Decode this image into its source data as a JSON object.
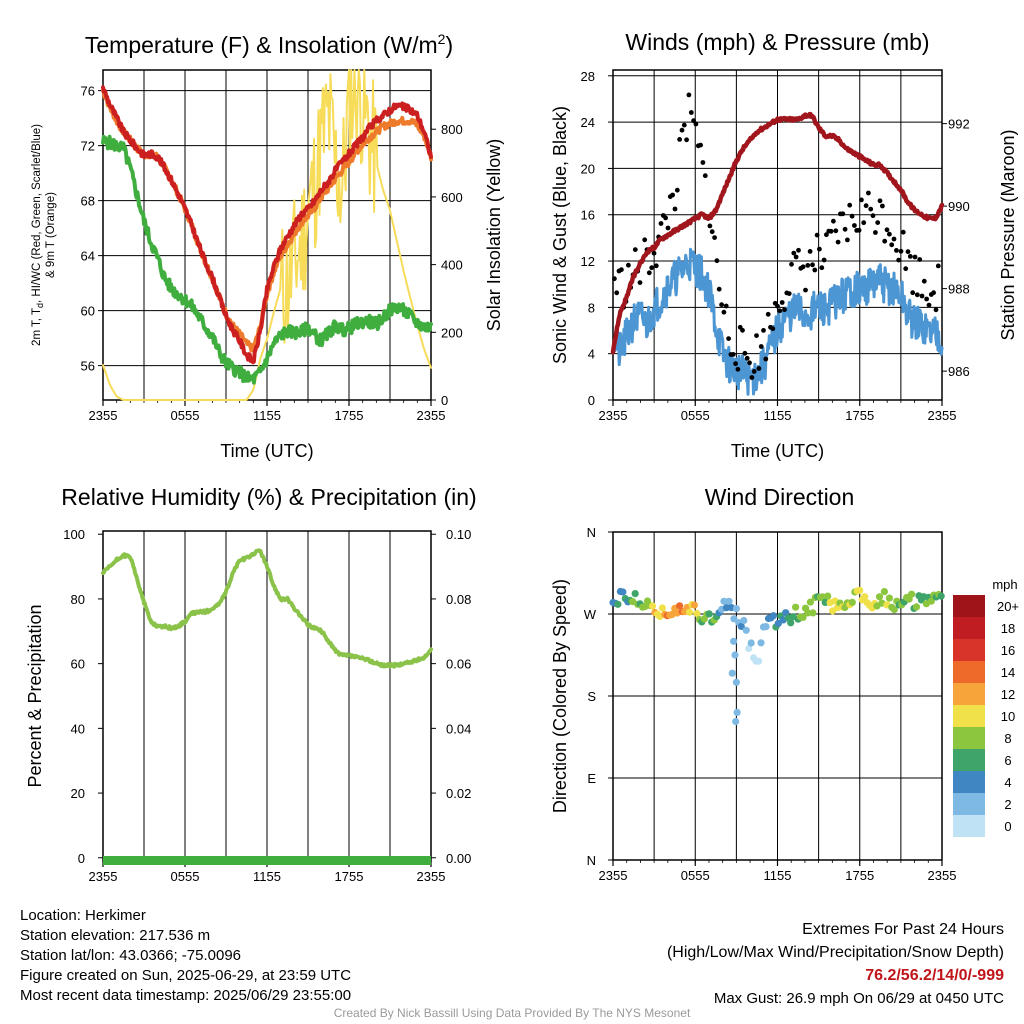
{
  "panels": {
    "temp": {
      "title": "Temperature (F) & Insolation (W/m",
      "title_sup": "2",
      "title_end": ")",
      "xlabel": "Time (UTC)",
      "ylabel_line1": "2m T, T",
      "ylabel_sub": "d",
      "ylabel_line1_end": ", HI/WC (Red, Green, Scarlet/Blue)",
      "ylabel_line2": "& 9m T (Orange)",
      "ylabel_right": "Solar Insolation (Yellow)"
    },
    "wind": {
      "title": "Winds (mph) & Pressure (mb)",
      "xlabel": "Time (UTC)",
      "ylabel": "Sonic Wind & Gust (Blue, Black)",
      "ylabel_right": "Station Pressure (Maroon)"
    },
    "rh": {
      "title": "Relative Humidity (%) & Precipitation (in)",
      "ylabel": "Percent & Precipitation"
    },
    "dir": {
      "title": "Wind Direction",
      "ylabel": "Direction (Colored By Speed)",
      "legend_title": "mph"
    }
  },
  "info": {
    "location": "Location: Herkimer",
    "elevation": "Station elevation: 217.536 m",
    "latlon": "Station lat/lon: 43.0366; -75.0096",
    "created": "Figure created on Sun, 2025-06-29, at 23:59 UTC",
    "recent": "Most recent data timestamp: 2025/06/29 23:55:00"
  },
  "extremes": {
    "line1": "Extremes For Past 24 Hours",
    "line2": "(High/Low/Max Wind/Precipitation/Snow Depth)",
    "values": "76.2/56.2/14/0/-999",
    "gust": "Max Gust: 26.9 mph On 06/29 at 0450 UTC"
  },
  "credit": "Created By Nick Bassill Using Data Provided By The NYS Mesonet",
  "colors": {
    "temp": "#cc1f1f",
    "temp9m": "#ee7b2c",
    "dewpoint": "#3fae3f",
    "solar": "#f7dc5a",
    "wind": "#4d96d4",
    "gust": "#000000",
    "pressure": "#a1161c",
    "rh": "#8bc34a",
    "precip": "#3fae3f"
  },
  "chart_data": [
    {
      "type": "line",
      "title": "Temperature (F) & Insolation (W/m2)",
      "xlabel": "Time (UTC)",
      "x_ticks": [
        "2355",
        "0555",
        "1155",
        "1755",
        "2355"
      ],
      "ylim": [
        53.5,
        77.5
      ],
      "y_ticks": [
        56,
        60,
        64,
        68,
        72,
        76
      ],
      "y2lim": [
        0,
        975
      ],
      "y2_ticks": [
        0,
        200,
        400,
        600,
        800
      ],
      "x_hours": [
        0,
        0.5,
        1,
        1.5,
        2,
        2.5,
        3,
        3.5,
        4,
        4.5,
        5,
        5.5,
        6,
        6.5,
        7,
        7.5,
        8,
        8.5,
        9,
        9.5,
        10,
        10.5,
        11,
        11.5,
        12,
        12.5,
        13,
        13.5,
        14,
        14.5,
        15,
        15.5,
        16,
        16.5,
        17,
        17.5,
        18,
        18.5,
        19,
        19.5,
        20,
        20.5,
        21,
        21.5,
        22,
        22.5,
        23,
        23.5,
        24
      ],
      "series": [
        {
          "values": [
            76.2,
            75.0,
            74.0,
            73.0,
            72.4,
            71.8,
            71.3,
            71.4,
            71.2,
            70.4,
            69.5,
            68.5,
            67.4,
            66.2,
            64.8,
            63.5,
            62.4,
            61.0,
            59.6,
            58.6,
            57.8,
            56.8,
            56.3,
            58.5,
            61.5,
            63.2,
            64.5,
            65.4,
            66.2,
            67.0,
            67.4,
            68.0,
            68.8,
            69.4,
            70.2,
            70.8,
            71.4,
            72.0,
            72.6,
            73.3,
            73.8,
            74.2,
            74.6,
            74.9,
            74.8,
            74.6,
            74.2,
            73.0,
            71.2
          ]
        },
        {
          "values": [
            76.0,
            74.8,
            73.8,
            73.0,
            72.4,
            71.8,
            71.3,
            71.4,
            71.2,
            70.4,
            69.5,
            68.5,
            67.4,
            66.2,
            64.8,
            63.5,
            62.4,
            61.0,
            59.8,
            58.9,
            58.3,
            57.6,
            57.2,
            58.8,
            61.2,
            62.8,
            64.0,
            64.8,
            65.6,
            66.4,
            66.9,
            67.5,
            68.3,
            68.9,
            69.6,
            70.2,
            70.8,
            71.5,
            72.1,
            72.6,
            73.0,
            73.4,
            73.6,
            73.8,
            73.8,
            73.8,
            73.5,
            72.7,
            71.2
          ]
        },
        {
          "values": [
            72.3,
            72.2,
            72.0,
            71.8,
            70.3,
            68.4,
            66.5,
            65.0,
            63.8,
            62.4,
            61.6,
            61.2,
            60.8,
            60.3,
            59.6,
            58.8,
            58.1,
            57.0,
            56.2,
            55.8,
            55.5,
            55.1,
            55.0,
            55.5,
            56.5,
            57.6,
            58.2,
            58.5,
            58.4,
            58.4,
            58.8,
            58.2,
            57.8,
            58.4,
            58.9,
            58.6,
            58.7,
            59.0,
            59.2,
            59.2,
            59.0,
            59.5,
            60.0,
            60.3,
            60.0,
            59.6,
            59.1,
            58.8,
            58.8
          ]
        },
        {
          "values": [
            103,
            45,
            10,
            0,
            0,
            0,
            0,
            0,
            0,
            0,
            0,
            0,
            0,
            0,
            0,
            0,
            0,
            0,
            0,
            0,
            0,
            0,
            30,
            120,
            180,
            260,
            330,
            340,
            400,
            460,
            560,
            640,
            760,
            840,
            700,
            620,
            880,
            940,
            880,
            780,
            700,
            620,
            560,
            470,
            380,
            300,
            220,
            150,
            95
          ]
        }
      ]
    },
    {
      "type": "line",
      "title": "Winds (mph) & Pressure (mb)",
      "xlabel": "Time (UTC)",
      "x_ticks": [
        "2355",
        "0555",
        "1155",
        "1755",
        "2355"
      ],
      "ylim": [
        0,
        28.5
      ],
      "y_ticks": [
        0,
        4,
        8,
        12,
        16,
        20,
        24,
        28
      ],
      "y2lim": [
        985.3,
        993.3
      ],
      "y2_ticks": [
        986,
        988,
        990,
        992
      ],
      "x_hours": [
        0,
        0.5,
        1,
        1.5,
        2,
        2.5,
        3,
        3.5,
        4,
        4.5,
        5,
        5.5,
        6,
        6.5,
        7,
        7.5,
        8,
        8.5,
        9,
        9.5,
        10,
        10.5,
        11,
        11.5,
        12,
        12.5,
        13,
        13.5,
        14,
        14.5,
        15,
        15.5,
        16,
        16.5,
        17,
        17.5,
        18,
        18.5,
        19,
        19.5,
        20,
        20.5,
        21,
        21.5,
        22,
        22.5,
        23,
        23.5,
        24
      ],
      "series": [
        {
          "values": [
            5.5,
            4.0,
            5.5,
            6.8,
            7.2,
            6.5,
            8.0,
            8.8,
            9.8,
            10.5,
            11.2,
            12.0,
            11.5,
            10.8,
            9.5,
            6.5,
            4.0,
            3.0,
            2.6,
            2.2,
            1.8,
            2.2,
            3.0,
            4.5,
            6.0,
            7.0,
            7.5,
            7.8,
            7.2,
            7.6,
            8.0,
            7.8,
            8.4,
            8.8,
            9.2,
            9.6,
            9.5,
            9.8,
            10.0,
            10.2,
            9.8,
            9.5,
            9.0,
            7.5,
            6.5,
            6.5,
            6.0,
            6.0,
            5.5
          ]
        },
        {
          "values": [
            10.5,
            9.8,
            10.0,
            11.0,
            11.5,
            12.2,
            13.0,
            14.0,
            16.0,
            18.0,
            21.5,
            24.5,
            23.0,
            20.0,
            17.0,
            12.0,
            8.0,
            5.5,
            4.8,
            4.0,
            3.5,
            4.0,
            5.0,
            6.5,
            8.5,
            9.8,
            10.8,
            11.2,
            11.5,
            11.8,
            12.5,
            12.0,
            13.5,
            14.5,
            15.0,
            15.5,
            16.0,
            16.2,
            16.5,
            16.0,
            15.5,
            14.5,
            13.5,
            12.0,
            11.0,
            10.5,
            10.0,
            9.8,
            9.5
          ]
        },
        {
          "values": [
            986.5,
            987.4,
            987.8,
            988.3,
            988.6,
            988.9,
            989.0,
            989.2,
            989.3,
            989.4,
            989.5,
            989.6,
            989.7,
            989.8,
            989.7,
            989.9,
            990.3,
            990.7,
            991.1,
            991.4,
            991.6,
            991.8,
            991.9,
            992.0,
            992.1,
            992.1,
            992.1,
            992.1,
            992.2,
            992.2,
            991.9,
            991.7,
            991.7,
            991.6,
            991.4,
            991.3,
            991.2,
            991.1,
            991.0,
            991.0,
            990.8,
            990.6,
            990.4,
            990.1,
            989.9,
            989.8,
            989.7,
            989.7,
            990.0
          ]
        }
      ]
    },
    {
      "type": "line",
      "title": "Relative Humidity (%) & Precipitation (in)",
      "ylabel": "Percent & Precipitation",
      "x_ticks": [
        "2355",
        "0555",
        "1155",
        "1755",
        "2355"
      ],
      "ylim": [
        -1,
        101
      ],
      "y_ticks": [
        0,
        20,
        40,
        60,
        80,
        100
      ],
      "y2lim": [
        -0.001,
        0.101
      ],
      "y2_ticks": [
        "0.00",
        "0.02",
        "0.04",
        "0.06",
        "0.08",
        "0.10"
      ],
      "x_hours": [
        0,
        0.5,
        1,
        1.5,
        2,
        2.5,
        3,
        3.5,
        4,
        4.5,
        5,
        5.5,
        6,
        6.5,
        7,
        7.5,
        8,
        8.5,
        9,
        9.5,
        10,
        10.5,
        11,
        11.5,
        12,
        12.5,
        13,
        13.5,
        14,
        14.5,
        15,
        15.5,
        16,
        16.5,
        17,
        17.5,
        18,
        18.5,
        19,
        19.5,
        20,
        20.5,
        21,
        21.5,
        22,
        22.5,
        23,
        23.5,
        24
      ],
      "series": [
        {
          "values": [
            88,
            90,
            92,
            93.5,
            93,
            86,
            79,
            73,
            71.5,
            71.5,
            71,
            71.5,
            73,
            75.5,
            76,
            76,
            77,
            78.5,
            82,
            88,
            92,
            92.5,
            94,
            95,
            90,
            84,
            80,
            80,
            77,
            74.5,
            72,
            71,
            70,
            67,
            64,
            62.5,
            62.5,
            62,
            61.5,
            61,
            60,
            59.5,
            59.5,
            59.5,
            60,
            60.5,
            61,
            62,
            64
          ]
        },
        {
          "values": [
            0,
            0,
            0,
            0,
            0,
            0,
            0,
            0,
            0,
            0,
            0,
            0,
            0,
            0,
            0,
            0,
            0,
            0,
            0,
            0,
            0,
            0,
            0,
            0,
            0,
            0,
            0,
            0,
            0,
            0,
            0,
            0,
            0,
            0,
            0,
            0,
            0,
            0,
            0,
            0,
            0,
            0,
            0,
            0,
            0,
            0,
            0,
            0,
            0
          ]
        }
      ]
    },
    {
      "type": "scatter",
      "title": "Wind Direction",
      "ylabel": "Direction (Colored By Speed)",
      "x_ticks": [
        "2355",
        "0555",
        "1155",
        "1755",
        "2355"
      ],
      "y_ticks": [
        "N",
        "E",
        "S",
        "W",
        "N"
      ],
      "ylim": [
        0,
        360
      ],
      "legend": [
        "0",
        "2",
        "4",
        "6",
        "8",
        "10",
        "12",
        "14",
        "16",
        "18",
        "20+"
      ],
      "legend_colors": [
        "#bfe3f5",
        "#7eb9e3",
        "#3f86c2",
        "#3fa46a",
        "#8cc63f",
        "#f0e04a",
        "#f7a43a",
        "#ee6a2a",
        "#d8342a",
        "#c01d22",
        "#9e1418"
      ],
      "x_hours": [
        0,
        0.5,
        1,
        1.5,
        2,
        2.5,
        3,
        3.5,
        4,
        4.5,
        5,
        5.5,
        6,
        6.5,
        7,
        7.5,
        8,
        8.5,
        9,
        9.5,
        10,
        10.5,
        11,
        11.5,
        12,
        12.5,
        13,
        13.5,
        14,
        14.5,
        15,
        15.5,
        16,
        16.5,
        17,
        17.5,
        18,
        18.5,
        19,
        19.5,
        20,
        20.5,
        21,
        21.5,
        22,
        22.5,
        23,
        23.5,
        24
      ],
      "direction": [
        290,
        288,
        284,
        292,
        280,
        285,
        278,
        268,
        272,
        276,
        274,
        276,
        272,
        266,
        268,
        262,
        285,
        278,
        268,
        258,
        235,
        210,
        250,
        262,
        258,
        270,
        268,
        272,
        275,
        278,
        285,
        288,
        276,
        280,
        285,
        290,
        292,
        284,
        282,
        290,
        287,
        280,
        285,
        290,
        283,
        287,
        282,
        284,
        284
      ],
      "speed": [
        5,
        5,
        4,
        6,
        7,
        8,
        10,
        11,
        12,
        12,
        13,
        12,
        11,
        8,
        7,
        6,
        3,
        2,
        2,
        2,
        1,
        1,
        2,
        5,
        5,
        6,
        6,
        7,
        8,
        8,
        8,
        8,
        9,
        9,
        9,
        9,
        10,
        10,
        10,
        9,
        9,
        8,
        8,
        8,
        7,
        7,
        7,
        7,
        6
      ]
    }
  ]
}
